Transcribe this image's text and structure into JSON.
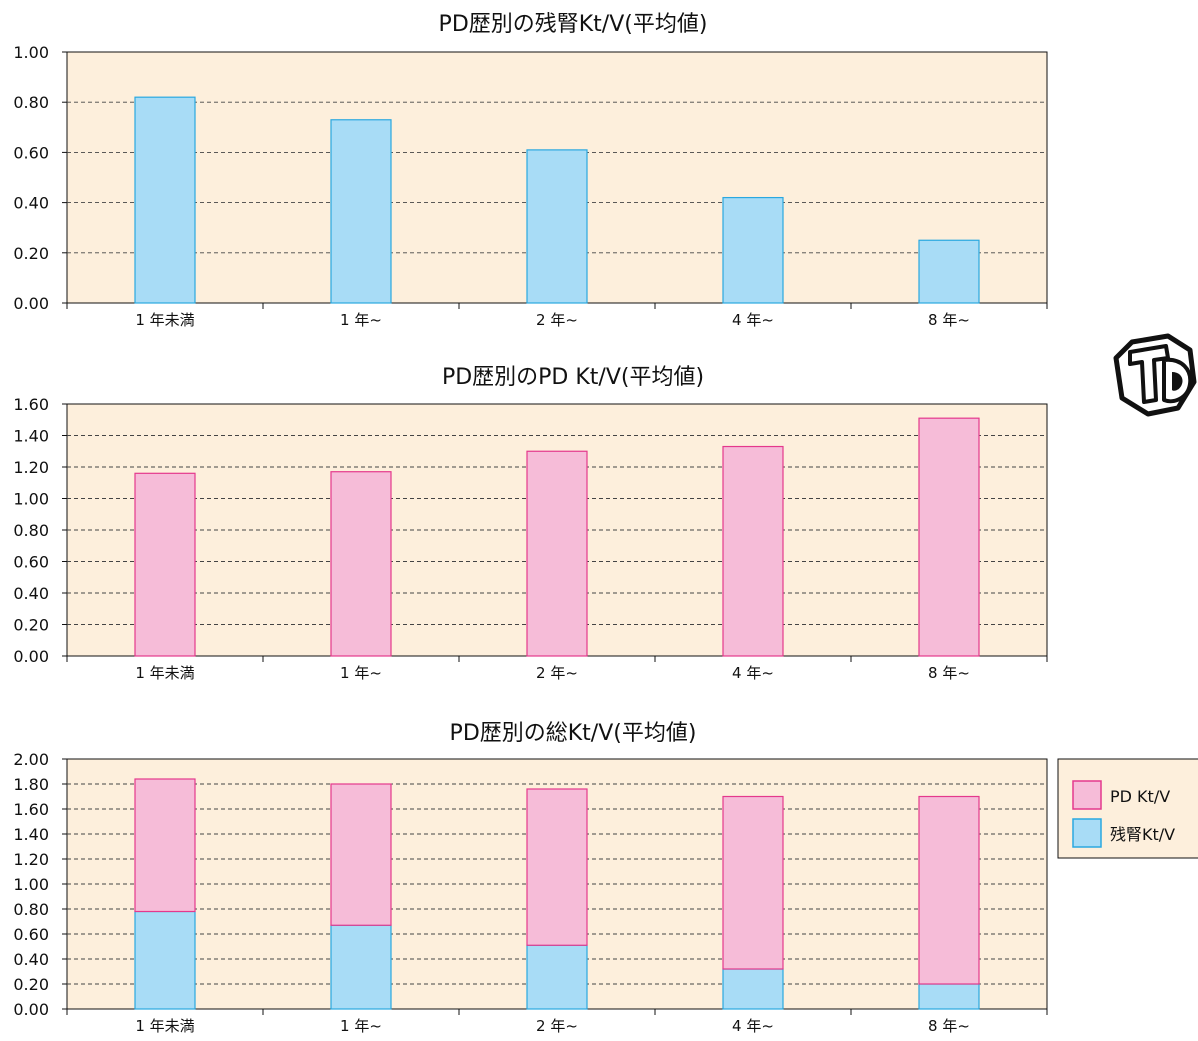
{
  "colors": {
    "plot_bg": "#fdefdc",
    "pd": "#f6bcd8",
    "pd_stroke": "#e4398d",
    "residual": "#a8dcf6",
    "residual_stroke": "#2aa8e0",
    "grid": "#444444",
    "logo": "#111111"
  },
  "chart_data": [
    {
      "type": "bar",
      "title": "PD歴別の残腎Kt/V(平均値)",
      "categories": [
        "1 年未満",
        "1 年~",
        "2 年~",
        "4 年~",
        "8 年~"
      ],
      "series": [
        {
          "key": "residual",
          "values": [
            0.82,
            0.73,
            0.61,
            0.42,
            0.25
          ]
        }
      ],
      "ylim": [
        0,
        1.0
      ],
      "yticks": [
        "0.00",
        "0.20",
        "0.40",
        "0.60",
        "0.80",
        "1.00"
      ],
      "grid": true
    },
    {
      "type": "bar",
      "title": "PD歴別のPD Kt/V(平均値)",
      "categories": [
        "1 年未満",
        "1 年~",
        "2 年~",
        "4 年~",
        "8 年~"
      ],
      "series": [
        {
          "key": "pd",
          "values": [
            1.16,
            1.17,
            1.3,
            1.33,
            1.51
          ]
        }
      ],
      "ylim": [
        0,
        1.6
      ],
      "yticks": [
        "0.00",
        "0.20",
        "0.40",
        "0.60",
        "0.80",
        "1.00",
        "1.20",
        "1.40",
        "1.60"
      ],
      "grid": true
    },
    {
      "type": "bar",
      "stacked": true,
      "title": "PD歴別の総Kt/V(平均値)",
      "categories": [
        "1 年未満",
        "1 年~",
        "2 年~",
        "4 年~",
        "8 年~"
      ],
      "series": [
        {
          "key": "residual",
          "name": "残腎Kt/V",
          "values": [
            0.78,
            0.67,
            0.51,
            0.32,
            0.2
          ]
        },
        {
          "key": "pd",
          "name": "PD Kt/V",
          "values": [
            1.06,
            1.13,
            1.25,
            1.38,
            1.5
          ]
        }
      ],
      "ylim": [
        0,
        2.0
      ],
      "yticks": [
        "0.00",
        "0.20",
        "0.40",
        "0.60",
        "0.80",
        "1.00",
        "1.20",
        "1.40",
        "1.60",
        "1.80",
        "2.00"
      ],
      "grid": true,
      "legend": {
        "placement": "right",
        "entries": [
          {
            "key": "pd",
            "label": "PD Kt/V"
          },
          {
            "key": "residual",
            "label": "残腎Kt/V"
          }
        ]
      }
    }
  ],
  "logo": {
    "name": "td-logo-icon"
  }
}
